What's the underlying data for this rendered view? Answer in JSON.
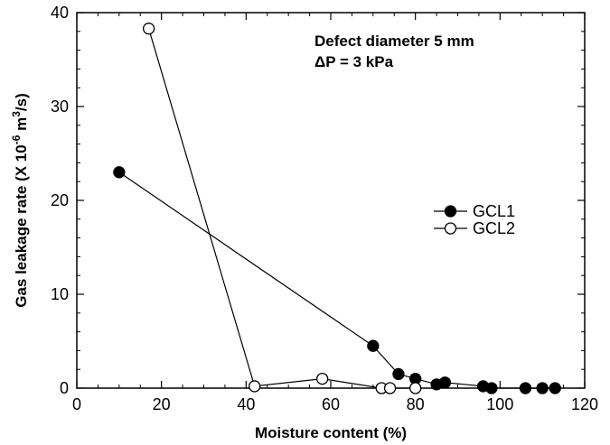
{
  "chart_data": {
    "type": "scatter",
    "title": "",
    "xlabel": "Moisture content (%)",
    "ylabel": "Gas leakage rate (X 10",
    "ylabel_exp": "-6",
    "ylabel_unit": " m",
    "ylabel_unit_exp": "3",
    "ylabel_tail": "/s)",
    "xlim": [
      0,
      120
    ],
    "ylim": [
      0,
      40
    ],
    "xticks": [
      "0",
      "20",
      "40",
      "60",
      "80",
      "100",
      "120"
    ],
    "yticks": [
      "0",
      "10",
      "20",
      "30",
      "40"
    ],
    "grid": false,
    "legend_position": "right",
    "annotations": {
      "line1": "Defect diameter 5 mm",
      "line2_symbol": "Δ",
      "line2_text": "P = 3 kPa"
    },
    "series": [
      {
        "name": "GCL1",
        "marker": "filled-circle",
        "color": "#000000",
        "x": [
          10,
          70,
          76,
          80,
          85,
          87,
          96,
          98,
          106,
          110,
          113
        ],
        "y": [
          23,
          4.5,
          1.5,
          1.0,
          0.4,
          0.6,
          0.2,
          0.0,
          0.0,
          0.0,
          0.0
        ]
      },
      {
        "name": "GCL2",
        "marker": "open-circle",
        "color": "#000000",
        "x": [
          17,
          42,
          58,
          72,
          74,
          80
        ],
        "y": [
          38.3,
          0.2,
          1.0,
          0.0,
          0.0,
          0.0
        ]
      }
    ]
  }
}
